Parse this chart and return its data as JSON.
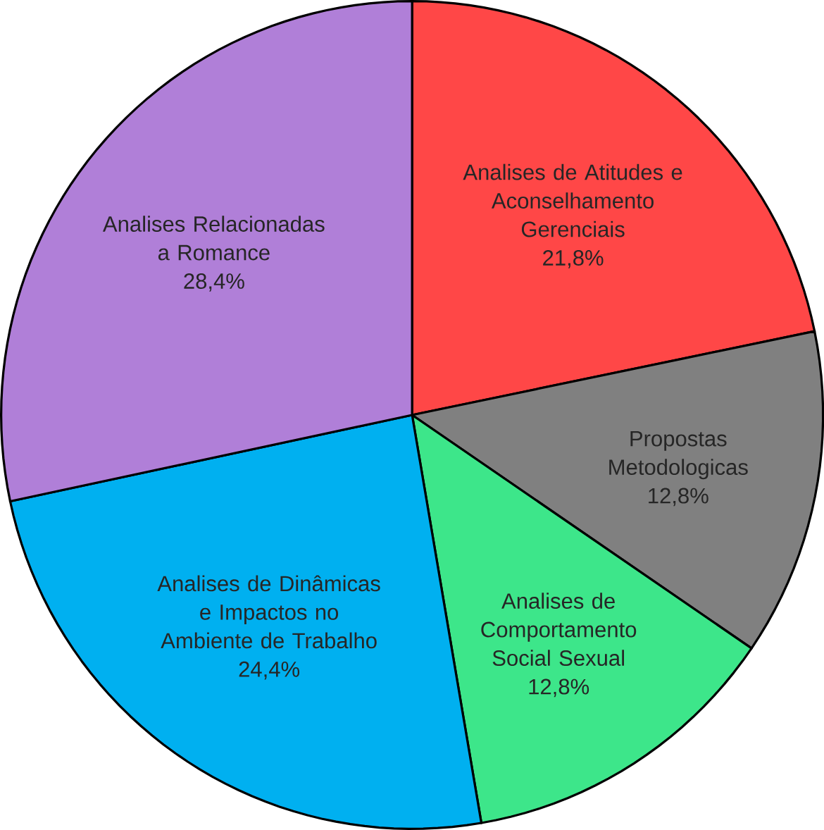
{
  "chart_data": {
    "type": "pie",
    "categories": [
      "Analises de Atitudes e Aconselhamento Gerenciais",
      "Propostas Metodologicas",
      "Analises de Comportamento Social Sexual",
      "Analises de Dinâmicas e Impactos no Ambiente de Trabalho",
      "Analises Relacionadas a Romance"
    ],
    "values": [
      21.8,
      12.8,
      12.8,
      24.4,
      28.4
    ],
    "value_labels": [
      "21,8%",
      "12,8%",
      "12,8%",
      "24,4%",
      "28,4%"
    ],
    "colors": [
      "#ff4747",
      "#808080",
      "#3de68a",
      "#00b0f0",
      "#b07fd8"
    ]
  }
}
